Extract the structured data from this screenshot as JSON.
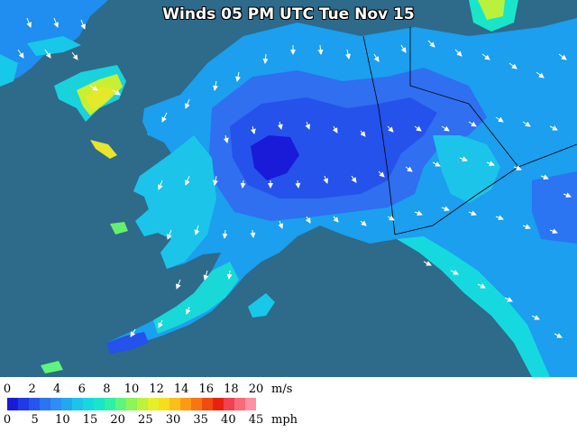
{
  "title": "Winds 05 PM UTC Tue Nov 15",
  "colors": {
    "ocean": "#2e6a8a",
    "land_outside": "#2e6a8a",
    "border": "#000000",
    "arrow": "#ffffff"
  },
  "legend": {
    "ms_ticks": [
      "0",
      "2",
      "4",
      "6",
      "8",
      "10",
      "12",
      "14",
      "16",
      "18",
      "20"
    ],
    "ms_unit": "m/s",
    "mph_ticks": [
      "0",
      "5",
      "10",
      "15",
      "20",
      "25",
      "30",
      "35",
      "40",
      "45"
    ],
    "mph_unit": "mph",
    "scale_colors": [
      "#1a1ad9",
      "#1f3ae6",
      "#2456ee",
      "#2b74f2",
      "#2f8ef5",
      "#21a9f0",
      "#1cc4ea",
      "#16d9e0",
      "#19e6c8",
      "#2ef0a6",
      "#5ef57e",
      "#8ff557",
      "#bdf23a",
      "#e3ef27",
      "#f8dd1a",
      "#fbbf16",
      "#fb9b14",
      "#f97412",
      "#f24a10",
      "#e8220f",
      "#f0424f",
      "#f76a78",
      "#fb91a2"
    ]
  }
}
